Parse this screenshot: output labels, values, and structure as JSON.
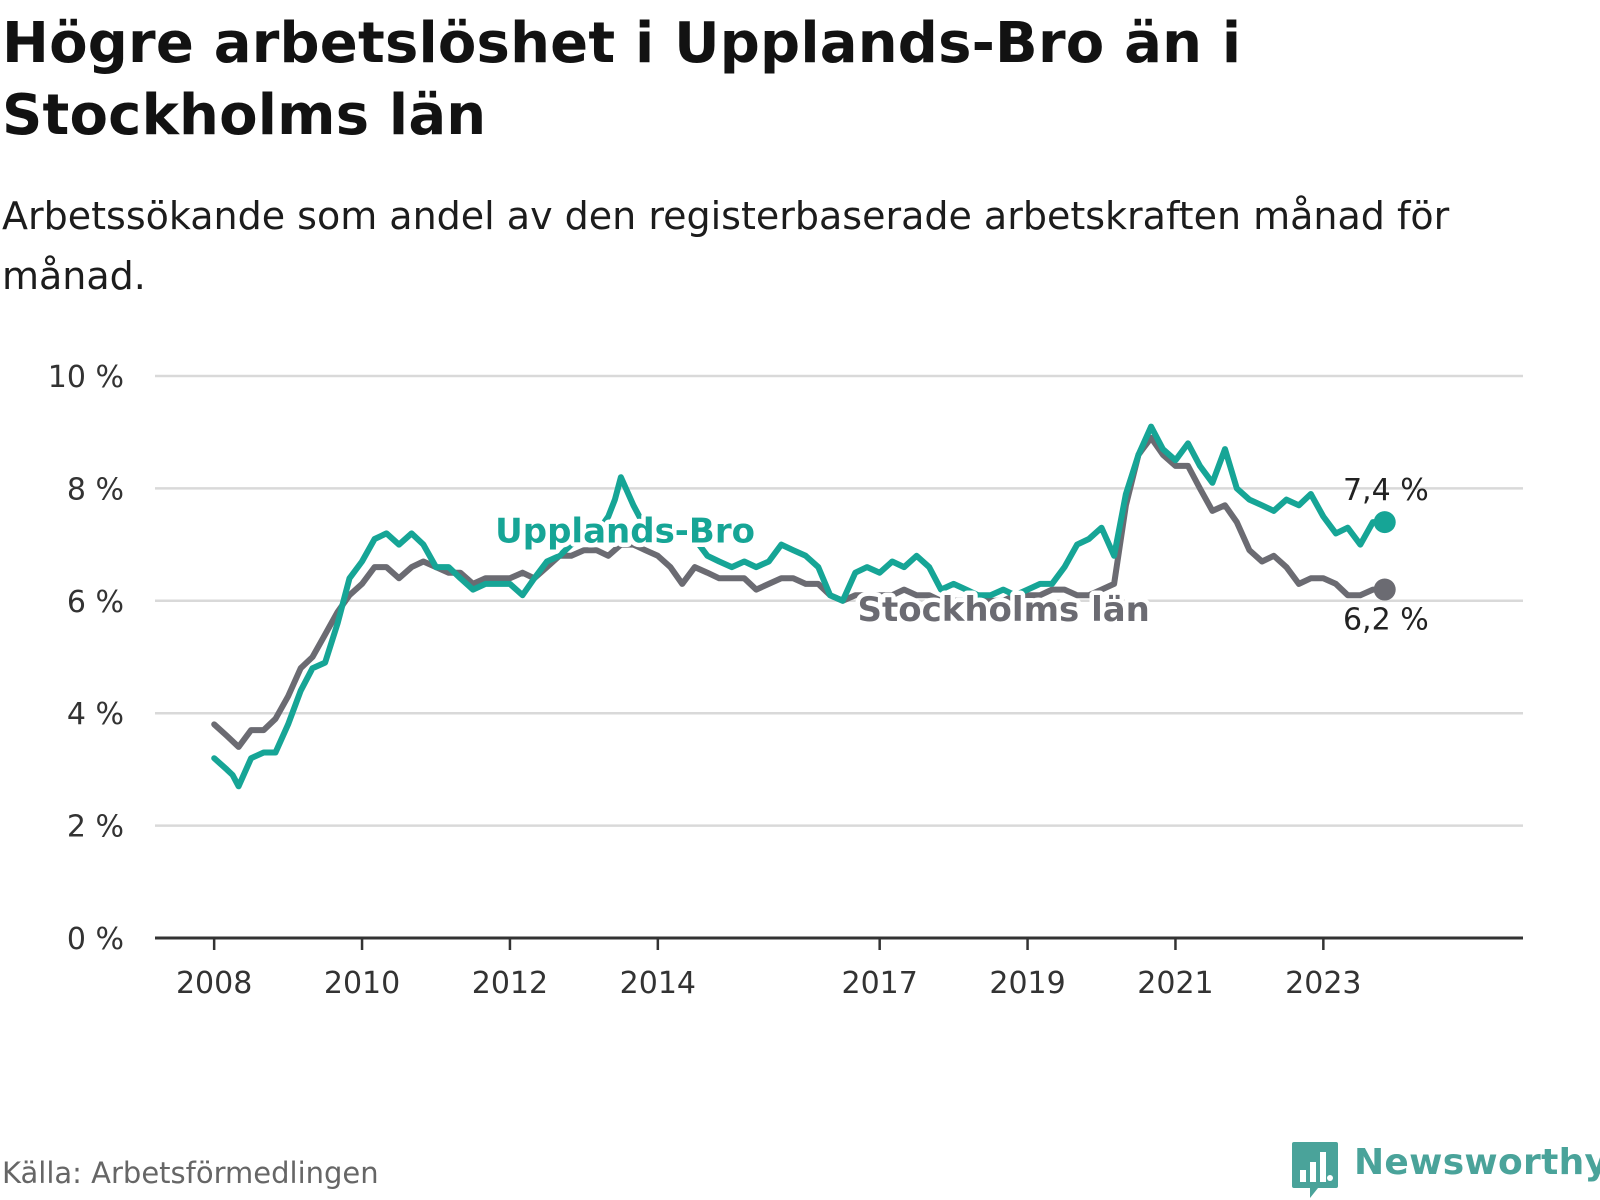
{
  "title": "Högre arbetslöshet i Upplands-Bro än i Stockholms län",
  "subtitle": "Arbetssökande som andel av den registerbaserade arbetskraften månad för månad.",
  "source": "Källa: Arbetsförmedlingen",
  "brand": "Newsworthy",
  "colors": {
    "upplands_bro": "#16a596",
    "stockholms_lan": "#6b6b72",
    "grid": "#d9d9d9",
    "axis": "#333333",
    "brand": "#4aa39a"
  },
  "chart_data": {
    "type": "line",
    "title": "Högre arbetslöshet i Upplands-Bro än i Stockholms län",
    "xlabel": "",
    "ylabel": "",
    "ylim": [
      0,
      10
    ],
    "xlim": [
      2007.2,
      2025.7
    ],
    "y_ticks": [
      0,
      2,
      4,
      6,
      8,
      10
    ],
    "y_tick_labels": [
      "0 %",
      "2 %",
      "4 %",
      "6 %",
      "8 %",
      "10 %"
    ],
    "x_ticks": [
      2008,
      2010,
      2012,
      2014,
      2017,
      2019,
      2021,
      2023
    ],
    "x_tick_labels": [
      "2008",
      "2010",
      "2012",
      "2014",
      "2017",
      "2019",
      "2021",
      "2023"
    ],
    "grid": true,
    "series": [
      {
        "name": "Upplands-Bro",
        "color": "#16a596",
        "end_label": "7,4 %",
        "points": [
          [
            2008.0,
            3.2
          ],
          [
            2008.17,
            3.0
          ],
          [
            2008.25,
            2.9
          ],
          [
            2008.33,
            2.7
          ],
          [
            2008.5,
            3.2
          ],
          [
            2008.67,
            3.3
          ],
          [
            2008.83,
            3.3
          ],
          [
            2009.0,
            3.8
          ],
          [
            2009.17,
            4.4
          ],
          [
            2009.33,
            4.8
          ],
          [
            2009.5,
            4.9
          ],
          [
            2009.67,
            5.6
          ],
          [
            2009.83,
            6.4
          ],
          [
            2010.0,
            6.7
          ],
          [
            2010.17,
            7.1
          ],
          [
            2010.33,
            7.2
          ],
          [
            2010.5,
            7.0
          ],
          [
            2010.67,
            7.2
          ],
          [
            2010.83,
            7.0
          ],
          [
            2011.0,
            6.6
          ],
          [
            2011.17,
            6.6
          ],
          [
            2011.33,
            6.4
          ],
          [
            2011.5,
            6.2
          ],
          [
            2011.67,
            6.3
          ],
          [
            2011.83,
            6.3
          ],
          [
            2012.0,
            6.3
          ],
          [
            2012.17,
            6.1
          ],
          [
            2012.33,
            6.4
          ],
          [
            2012.5,
            6.7
          ],
          [
            2012.67,
            6.8
          ],
          [
            2012.83,
            7.0
          ],
          [
            2013.0,
            7.1
          ],
          [
            2013.17,
            7.2
          ],
          [
            2013.33,
            7.5
          ],
          [
            2013.42,
            7.8
          ],
          [
            2013.5,
            8.2
          ],
          [
            2013.67,
            7.7
          ],
          [
            2013.83,
            7.3
          ],
          [
            2014.0,
            7.2
          ],
          [
            2014.17,
            7.1
          ],
          [
            2014.33,
            7.2
          ],
          [
            2014.5,
            7.1
          ],
          [
            2014.67,
            6.8
          ],
          [
            2014.83,
            6.7
          ],
          [
            2015.0,
            6.6
          ],
          [
            2015.17,
            6.7
          ],
          [
            2015.33,
            6.6
          ],
          [
            2015.5,
            6.7
          ],
          [
            2015.67,
            7.0
          ],
          [
            2015.83,
            6.9
          ],
          [
            2016.0,
            6.8
          ],
          [
            2016.17,
            6.6
          ],
          [
            2016.33,
            6.1
          ],
          [
            2016.5,
            6.0
          ],
          [
            2016.67,
            6.5
          ],
          [
            2016.83,
            6.6
          ],
          [
            2017.0,
            6.5
          ],
          [
            2017.17,
            6.7
          ],
          [
            2017.33,
            6.6
          ],
          [
            2017.5,
            6.8
          ],
          [
            2017.67,
            6.6
          ],
          [
            2017.83,
            6.2
          ],
          [
            2018.0,
            6.3
          ],
          [
            2018.17,
            6.2
          ],
          [
            2018.33,
            6.1
          ],
          [
            2018.5,
            6.1
          ],
          [
            2018.67,
            6.2
          ],
          [
            2018.83,
            6.1
          ],
          [
            2019.0,
            6.2
          ],
          [
            2019.17,
            6.3
          ],
          [
            2019.33,
            6.3
          ],
          [
            2019.5,
            6.6
          ],
          [
            2019.67,
            7.0
          ],
          [
            2019.83,
            7.1
          ],
          [
            2020.0,
            7.3
          ],
          [
            2020.17,
            6.8
          ],
          [
            2020.33,
            7.9
          ],
          [
            2020.5,
            8.6
          ],
          [
            2020.67,
            9.1
          ],
          [
            2020.83,
            8.7
          ],
          [
            2021.0,
            8.5
          ],
          [
            2021.17,
            8.8
          ],
          [
            2021.33,
            8.4
          ],
          [
            2021.5,
            8.1
          ],
          [
            2021.67,
            8.7
          ],
          [
            2021.83,
            8.0
          ],
          [
            2022.0,
            7.8
          ],
          [
            2022.17,
            7.7
          ],
          [
            2022.33,
            7.6
          ],
          [
            2022.5,
            7.8
          ],
          [
            2022.67,
            7.7
          ],
          [
            2022.83,
            7.9
          ],
          [
            2023.0,
            7.5
          ],
          [
            2023.17,
            7.2
          ],
          [
            2023.33,
            7.3
          ],
          [
            2023.5,
            7.0
          ],
          [
            2023.67,
            7.4
          ],
          [
            2023.83,
            7.4
          ]
        ]
      },
      {
        "name": "Stockholms län",
        "color": "#6b6b72",
        "end_label": "6,2 %",
        "points": [
          [
            2008.0,
            3.8
          ],
          [
            2008.17,
            3.6
          ],
          [
            2008.33,
            3.4
          ],
          [
            2008.5,
            3.7
          ],
          [
            2008.67,
            3.7
          ],
          [
            2008.83,
            3.9
          ],
          [
            2009.0,
            4.3
          ],
          [
            2009.17,
            4.8
          ],
          [
            2009.33,
            5.0
          ],
          [
            2009.5,
            5.4
          ],
          [
            2009.67,
            5.8
          ],
          [
            2009.83,
            6.1
          ],
          [
            2010.0,
            6.3
          ],
          [
            2010.17,
            6.6
          ],
          [
            2010.33,
            6.6
          ],
          [
            2010.5,
            6.4
          ],
          [
            2010.67,
            6.6
          ],
          [
            2010.83,
            6.7
          ],
          [
            2011.0,
            6.6
          ],
          [
            2011.17,
            6.5
          ],
          [
            2011.33,
            6.5
          ],
          [
            2011.5,
            6.3
          ],
          [
            2011.67,
            6.4
          ],
          [
            2011.83,
            6.4
          ],
          [
            2012.0,
            6.4
          ],
          [
            2012.17,
            6.5
          ],
          [
            2012.33,
            6.4
          ],
          [
            2012.5,
            6.6
          ],
          [
            2012.67,
            6.8
          ],
          [
            2012.83,
            6.8
          ],
          [
            2013.0,
            6.9
          ],
          [
            2013.17,
            6.9
          ],
          [
            2013.33,
            6.8
          ],
          [
            2013.5,
            7.0
          ],
          [
            2013.67,
            7.0
          ],
          [
            2013.83,
            6.9
          ],
          [
            2014.0,
            6.8
          ],
          [
            2014.17,
            6.6
          ],
          [
            2014.33,
            6.3
          ],
          [
            2014.5,
            6.6
          ],
          [
            2014.67,
            6.5
          ],
          [
            2014.83,
            6.4
          ],
          [
            2015.0,
            6.4
          ],
          [
            2015.17,
            6.4
          ],
          [
            2015.33,
            6.2
          ],
          [
            2015.5,
            6.3
          ],
          [
            2015.67,
            6.4
          ],
          [
            2015.83,
            6.4
          ],
          [
            2016.0,
            6.3
          ],
          [
            2016.17,
            6.3
          ],
          [
            2016.33,
            6.1
          ],
          [
            2016.5,
            6.0
          ],
          [
            2016.67,
            6.1
          ],
          [
            2016.83,
            6.1
          ],
          [
            2017.0,
            6.1
          ],
          [
            2017.17,
            6.1
          ],
          [
            2017.33,
            6.2
          ],
          [
            2017.5,
            6.1
          ],
          [
            2017.67,
            6.1
          ],
          [
            2017.83,
            6.0
          ],
          [
            2018.0,
            6.0
          ],
          [
            2018.17,
            6.0
          ],
          [
            2018.33,
            6.0
          ],
          [
            2018.5,
            6.0
          ],
          [
            2018.67,
            6.0
          ],
          [
            2018.83,
            6.1
          ],
          [
            2019.0,
            6.1
          ],
          [
            2019.17,
            6.1
          ],
          [
            2019.33,
            6.2
          ],
          [
            2019.5,
            6.2
          ],
          [
            2019.67,
            6.1
          ],
          [
            2019.83,
            6.1
          ],
          [
            2020.0,
            6.2
          ],
          [
            2020.17,
            6.3
          ],
          [
            2020.33,
            7.7
          ],
          [
            2020.5,
            8.6
          ],
          [
            2020.67,
            8.9
          ],
          [
            2020.83,
            8.6
          ],
          [
            2021.0,
            8.4
          ],
          [
            2021.17,
            8.4
          ],
          [
            2021.33,
            8.0
          ],
          [
            2021.5,
            7.6
          ],
          [
            2021.67,
            7.7
          ],
          [
            2021.83,
            7.4
          ],
          [
            2022.0,
            6.9
          ],
          [
            2022.17,
            6.7
          ],
          [
            2022.33,
            6.8
          ],
          [
            2022.5,
            6.6
          ],
          [
            2022.67,
            6.3
          ],
          [
            2022.83,
            6.4
          ],
          [
            2023.0,
            6.4
          ],
          [
            2023.17,
            6.3
          ],
          [
            2023.33,
            6.1
          ],
          [
            2023.5,
            6.1
          ],
          [
            2023.67,
            6.2
          ],
          [
            2023.83,
            6.2
          ]
        ]
      }
    ]
  }
}
